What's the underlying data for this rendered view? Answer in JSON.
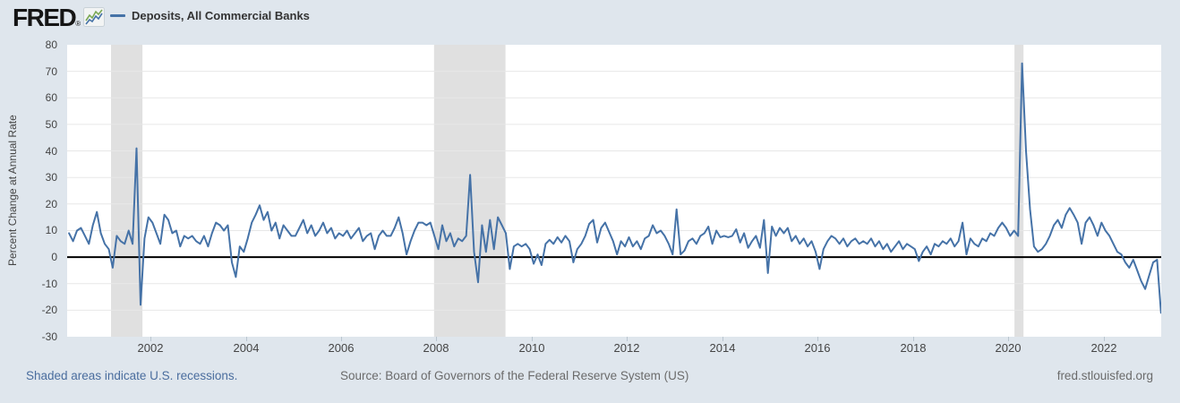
{
  "header": {
    "logo_text": "FRED",
    "logo_reg": "®",
    "legend_label": "Deposits, All Commercial Banks"
  },
  "footer": {
    "recessions_note": "Shaded areas indicate U.S. recessions.",
    "source": "Source: Board of Governors of the Federal Reserve System (US)",
    "site": "fred.stlouisfed.org"
  },
  "colors": {
    "background": "#dfe6ed",
    "plot_background": "#ffffff",
    "line": "#4572a7",
    "zero_line": "#000000",
    "recession_band": "#e0e0e0",
    "gridline": "#e7e7e7",
    "axis_text": "#444444",
    "link": "#4a6d9e",
    "muted_text": "#6b6b6b",
    "tickmark": "#b9c5cf"
  },
  "chart_data": {
    "type": "line",
    "title": "Deposits, All Commercial Banks",
    "xlabel": "",
    "ylabel": "Percent Change at Annual Rate",
    "ylim": [
      -30,
      80
    ],
    "y_ticks": [
      80,
      70,
      60,
      50,
      40,
      30,
      20,
      10,
      0,
      -10,
      -20,
      -30
    ],
    "x_ticks": [
      2002,
      2004,
      2006,
      2008,
      2010,
      2012,
      2014,
      2016,
      2018,
      2020,
      2022
    ],
    "x_range": [
      2000.25,
      2023.21
    ],
    "grid": "horizontal-only",
    "legend_position": "top-left",
    "frequency": "monthly",
    "start": "2000-04",
    "end": "2023-03",
    "x_start": 2000.29,
    "recessions": [
      [
        2001.17,
        2001.83
      ],
      [
        2007.95,
        2009.45
      ],
      [
        2020.13,
        2020.32
      ]
    ],
    "values": [
      9,
      6,
      10,
      11,
      8,
      5,
      12,
      17,
      9,
      5,
      3,
      -4,
      8,
      6,
      5,
      10,
      5,
      41,
      -18,
      7,
      15,
      13,
      9,
      5,
      16,
      14,
      9,
      10,
      4,
      8,
      7,
      8,
      6,
      5,
      8,
      4,
      9,
      13,
      12,
      10,
      12,
      -2,
      -7.5,
      4,
      2,
      7,
      13,
      16,
      19.5,
      14,
      17,
      10,
      13,
      7,
      12,
      10,
      8,
      8,
      11,
      14,
      9,
      12,
      8,
      10,
      13,
      9,
      11,
      7,
      9,
      8,
      10,
      7,
      9,
      11,
      6,
      8,
      9,
      3,
      8,
      10,
      8,
      8,
      11,
      15,
      9,
      1,
      6,
      10,
      13,
      13,
      12,
      13,
      8,
      3,
      12,
      6,
      9,
      4,
      7,
      6,
      8,
      31,
      2,
      -9.5,
      12,
      2,
      14,
      3,
      15,
      12,
      9,
      -4.5,
      4,
      5,
      4,
      5,
      3,
      -2.5,
      1,
      -3,
      5,
      6.5,
      5,
      7.5,
      5.5,
      8,
      6,
      -2,
      3,
      5,
      8,
      12.5,
      14,
      5.5,
      11,
      13,
      9.5,
      6,
      1,
      6,
      4,
      7.5,
      4,
      6,
      3,
      7,
      8,
      12,
      9,
      10,
      8,
      5,
      1,
      18,
      1,
      2.5,
      6,
      7,
      5,
      8,
      9,
      11.5,
      5,
      10,
      7.5,
      8,
      7.5,
      8,
      10.5,
      5.5,
      9,
      3.5,
      6,
      8,
      3.5,
      14,
      -6,
      11.5,
      8,
      11,
      9,
      11,
      6,
      8,
      5,
      7,
      4,
      6,
      2,
      -4.5,
      3,
      6,
      8,
      7,
      5,
      7,
      4,
      6,
      7,
      5,
      6,
      5,
      7,
      4,
      6,
      3,
      5,
      2,
      4,
      6,
      3,
      5,
      4,
      3,
      -1.5,
      2,
      4,
      1,
      5,
      4,
      6,
      5,
      7,
      4,
      6,
      13,
      1,
      7,
      5,
      4,
      7,
      6,
      9,
      8,
      11,
      13,
      11,
      8,
      10,
      8,
      73,
      40,
      18,
      4,
      2,
      3,
      5,
      8,
      12,
      14,
      11,
      16,
      18.5,
      16,
      13,
      5,
      13,
      15,
      12,
      8,
      13,
      10,
      8,
      5,
      2,
      1,
      -2,
      -4,
      -1,
      -5,
      -9,
      -12,
      -7,
      -2,
      -1,
      -21
    ]
  }
}
